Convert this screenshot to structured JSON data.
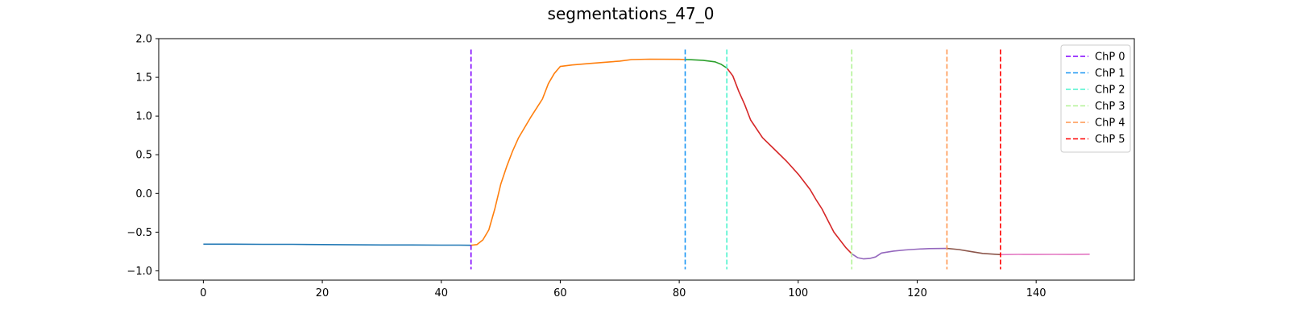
{
  "chart_data": {
    "type": "line",
    "title": "segmentations_47_0",
    "xlabel": "",
    "ylabel": "",
    "xlim": [
      -7.5,
      156.5
    ],
    "ylim": [
      -1.12,
      2.0
    ],
    "x_ticks": [
      0,
      20,
      40,
      60,
      80,
      100,
      120,
      140
    ],
    "y_ticks": [
      -1.0,
      -0.5,
      0.0,
      0.5,
      1.0,
      1.5,
      2.0
    ],
    "x_tick_labels": [
      "0",
      "20",
      "40",
      "60",
      "80",
      "100",
      "120",
      "140"
    ],
    "y_tick_labels": [
      "−1.0",
      "−0.5",
      "0.0",
      "0.5",
      "1.0",
      "1.5",
      "2.0"
    ],
    "grid": false,
    "legend_position": "top-right",
    "segments": [
      {
        "color": "#1f77b4",
        "points": [
          [
            0,
            -0.655
          ],
          [
            5,
            -0.655
          ],
          [
            10,
            -0.657
          ],
          [
            15,
            -0.657
          ],
          [
            20,
            -0.66
          ],
          [
            25,
            -0.663
          ],
          [
            30,
            -0.665
          ],
          [
            35,
            -0.665
          ],
          [
            40,
            -0.668
          ],
          [
            43,
            -0.668
          ],
          [
            45,
            -0.67
          ]
        ]
      },
      {
        "color": "#ff7f0e",
        "points": [
          [
            45,
            -0.67
          ],
          [
            46,
            -0.66
          ],
          [
            47,
            -0.6
          ],
          [
            48,
            -0.47
          ],
          [
            49,
            -0.2
          ],
          [
            50,
            0.12
          ],
          [
            51,
            0.35
          ],
          [
            52,
            0.55
          ],
          [
            53,
            0.72
          ],
          [
            55,
            0.98
          ],
          [
            57,
            1.22
          ],
          [
            58,
            1.42
          ],
          [
            59,
            1.55
          ],
          [
            60,
            1.64
          ],
          [
            62,
            1.66
          ],
          [
            65,
            1.68
          ],
          [
            70,
            1.71
          ],
          [
            72,
            1.73
          ],
          [
            75,
            1.735
          ],
          [
            80,
            1.733
          ],
          [
            81,
            1.73
          ]
        ]
      },
      {
        "color": "#2ca02c",
        "points": [
          [
            81,
            1.73
          ],
          [
            82,
            1.728
          ],
          [
            84,
            1.72
          ],
          [
            86,
            1.7
          ],
          [
            87,
            1.67
          ],
          [
            88,
            1.62
          ]
        ]
      },
      {
        "color": "#d62728",
        "points": [
          [
            88,
            1.62
          ],
          [
            89,
            1.52
          ],
          [
            90,
            1.32
          ],
          [
            91,
            1.15
          ],
          [
            92,
            0.95
          ],
          [
            94,
            0.72
          ],
          [
            96,
            0.57
          ],
          [
            98,
            0.42
          ],
          [
            100,
            0.25
          ],
          [
            102,
            0.05
          ],
          [
            103,
            -0.08
          ],
          [
            104,
            -0.2
          ],
          [
            105,
            -0.35
          ],
          [
            106,
            -0.5
          ],
          [
            107,
            -0.6
          ],
          [
            108,
            -0.7
          ],
          [
            109,
            -0.78
          ]
        ]
      },
      {
        "color": "#9467bd",
        "points": [
          [
            109,
            -0.78
          ],
          [
            110,
            -0.83
          ],
          [
            111,
            -0.845
          ],
          [
            112,
            -0.84
          ],
          [
            113,
            -0.82
          ],
          [
            114,
            -0.77
          ],
          [
            116,
            -0.745
          ],
          [
            118,
            -0.73
          ],
          [
            120,
            -0.72
          ],
          [
            122,
            -0.712
          ],
          [
            125,
            -0.71
          ]
        ]
      },
      {
        "color": "#8c564b",
        "points": [
          [
            125,
            -0.71
          ],
          [
            127,
            -0.725
          ],
          [
            129,
            -0.75
          ],
          [
            131,
            -0.775
          ],
          [
            133,
            -0.785
          ],
          [
            134,
            -0.79
          ]
        ]
      },
      {
        "color": "#e377c2",
        "points": [
          [
            134,
            -0.79
          ],
          [
            137,
            -0.787
          ],
          [
            140,
            -0.788
          ],
          [
            143,
            -0.787
          ],
          [
            146,
            -0.788
          ],
          [
            149,
            -0.785
          ]
        ]
      }
    ],
    "change_points": [
      {
        "name": "ChP 0",
        "x": 45,
        "color": "#8000ff"
      },
      {
        "name": "ChP 1",
        "x": 81,
        "color": "#1996f3"
      },
      {
        "name": "ChP 2",
        "x": 88,
        "color": "#4df3ce"
      },
      {
        "name": "ChP 3",
        "x": 109,
        "color": "#b2f396"
      },
      {
        "name": "ChP 4",
        "x": 125,
        "color": "#ff964f"
      },
      {
        "name": "ChP 5",
        "x": 134,
        "color": "#ff0000"
      }
    ],
    "change_point_y_range": [
      -0.98,
      1.86
    ]
  }
}
